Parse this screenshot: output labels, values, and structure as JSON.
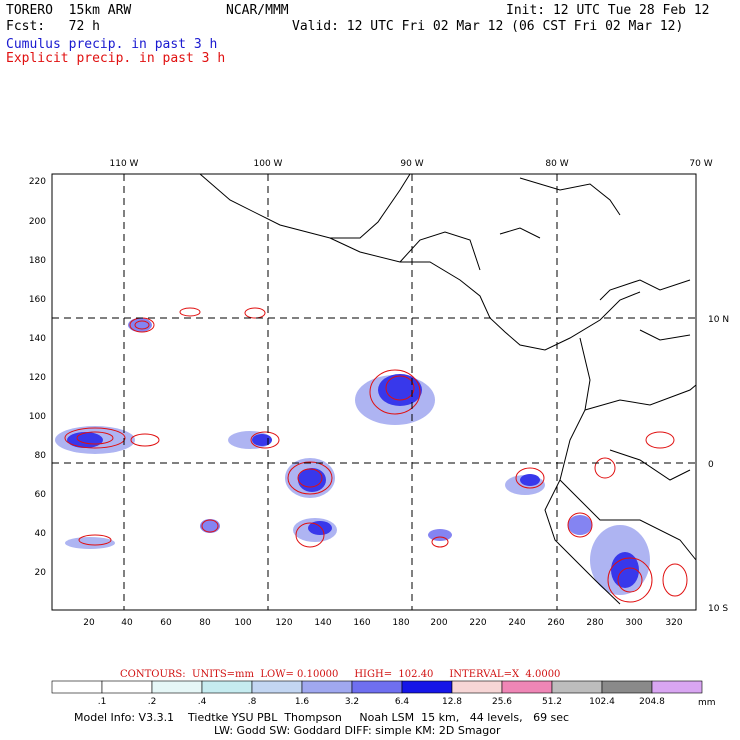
{
  "header": {
    "model": "TORERO  15km ARW",
    "center": "NCAR/MMM",
    "init": "Init: 12 UTC Tue 28 Feb 12",
    "fcst": "Fcst:   72 h",
    "valid": "Valid: 12 UTC Fri 02 Mar 12 (06 CST Fri 02 Mar 12)",
    "cumulus": "Cumulus precip. in past 3 h",
    "explicit": "Explicit precip. in past 3 h"
  },
  "map": {
    "top_labels": [
      "110 W",
      "100 W",
      "90 W",
      "80 W",
      "70 W"
    ],
    "right_labels": [
      "10 N",
      "0",
      "10 S"
    ],
    "y_ticks": [
      "220",
      "200",
      "180",
      "160",
      "140",
      "120",
      "100",
      "80",
      "60",
      "40",
      "20"
    ],
    "x_ticks": [
      "20",
      "40",
      "60",
      "80",
      "100",
      "120",
      "140",
      "160",
      "180",
      "200",
      "220",
      "240",
      "260",
      "280",
      "300",
      "320"
    ]
  },
  "contours": {
    "label": "CONTOURS:",
    "units": "UNITS=mm",
    "low": "LOW= 0.10000",
    "high": "HIGH=  102.40",
    "interval": "INTERVAL=X  4.0000"
  },
  "colorbar": {
    "unit": "mm",
    "labels": [
      ".1",
      ".2",
      ".4",
      ".8",
      "1.6",
      "3.2",
      "6.4",
      "12.8",
      "25.6",
      "51.2",
      "102.4",
      "204.8"
    ],
    "colors": [
      "#ffffff",
      "#ffffff",
      "#e6f7f7",
      "#c6ecf0",
      "#c3d6f2",
      "#a0a8f0",
      "#6f6ff0",
      "#1616e8",
      "#f7d6d6",
      "#ef86b6",
      "#bdbdbd",
      "#8a8a8a",
      "#d9a6f2"
    ]
  },
  "info": {
    "line1": "Model Info: V3.3.1    Tiedtke YSU PBL  Thompson     Noah LSM  15 km,   44 levels,   69 sec",
    "line2": "LW: Godd SW: Goddard DIFF: simple KM: 2D Smagor"
  }
}
